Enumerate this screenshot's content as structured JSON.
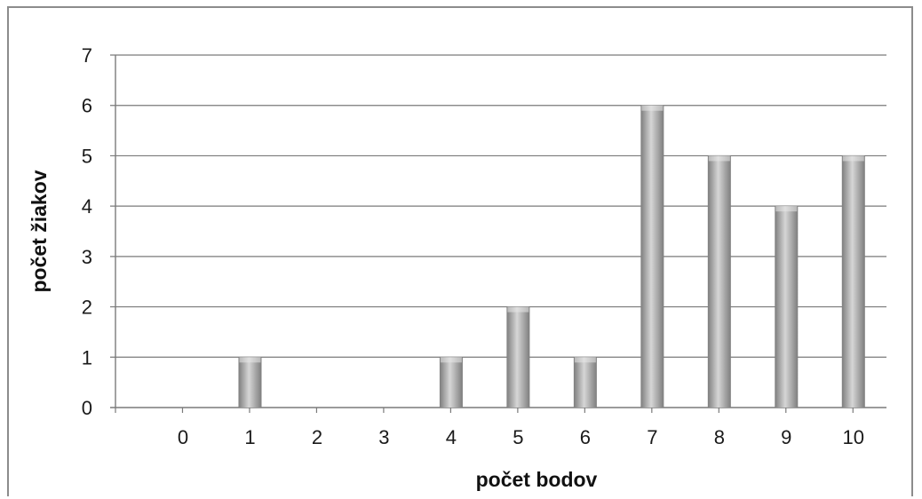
{
  "chart_data": {
    "type": "bar",
    "categories": [
      "0",
      "1",
      "2",
      "3",
      "4",
      "5",
      "6",
      "7",
      "8",
      "9",
      "10"
    ],
    "values": [
      0,
      1,
      0,
      0,
      1,
      2,
      1,
      6,
      5,
      4,
      5
    ],
    "xlabel": "počet bodov",
    "ylabel": "počet žiakov",
    "ylim": [
      0,
      7
    ],
    "yticks": [
      "0",
      "1",
      "2",
      "3",
      "4",
      "5",
      "6",
      "7"
    ],
    "grid": true,
    "legend": "none"
  },
  "colors": {
    "bar_dark": "#7d7d7d",
    "bar_light": "#d6d6d6",
    "grid": "#7a7a7a",
    "frame": "#8c8c8c"
  }
}
